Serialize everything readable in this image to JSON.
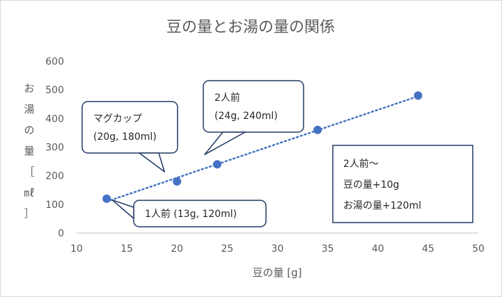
{
  "chart_data": {
    "type": "scatter",
    "title": "豆の量とお湯の量の関係",
    "xlabel": "豆の量 [g]",
    "ylabel": "お湯の量［㎖］",
    "ylabel_chars": [
      "お",
      "湯",
      "の",
      "量",
      "［",
      "㎖",
      "］"
    ],
    "xlim": [
      10,
      50
    ],
    "ylim": [
      0,
      600
    ],
    "xticks": [
      10,
      15,
      20,
      25,
      30,
      35,
      40,
      45,
      50
    ],
    "yticks": [
      0,
      100,
      200,
      300,
      400,
      500,
      600
    ],
    "grid": false,
    "trendline": "linear, dotted",
    "points": [
      {
        "x": 13,
        "y": 120
      },
      {
        "x": 20,
        "y": 180
      },
      {
        "x": 24,
        "y": 240
      },
      {
        "x": 34,
        "y": 360
      },
      {
        "x": 44,
        "y": 480
      }
    ],
    "marker_color": "#4472C4",
    "callout_border_color": "#203864",
    "callouts": [
      {
        "lines": [
          "マグカップ",
          "(20g, 180ml)"
        ],
        "point": 1
      },
      {
        "lines": [
          "2人前",
          "(24g, 240ml)"
        ],
        "point": 2
      },
      {
        "lines": [
          "1人前 (13g, 120ml)"
        ],
        "point": 0
      }
    ],
    "note": {
      "lines": [
        "2人前〜",
        "豆の量+10g",
        "お湯の量+120ml"
      ]
    }
  }
}
